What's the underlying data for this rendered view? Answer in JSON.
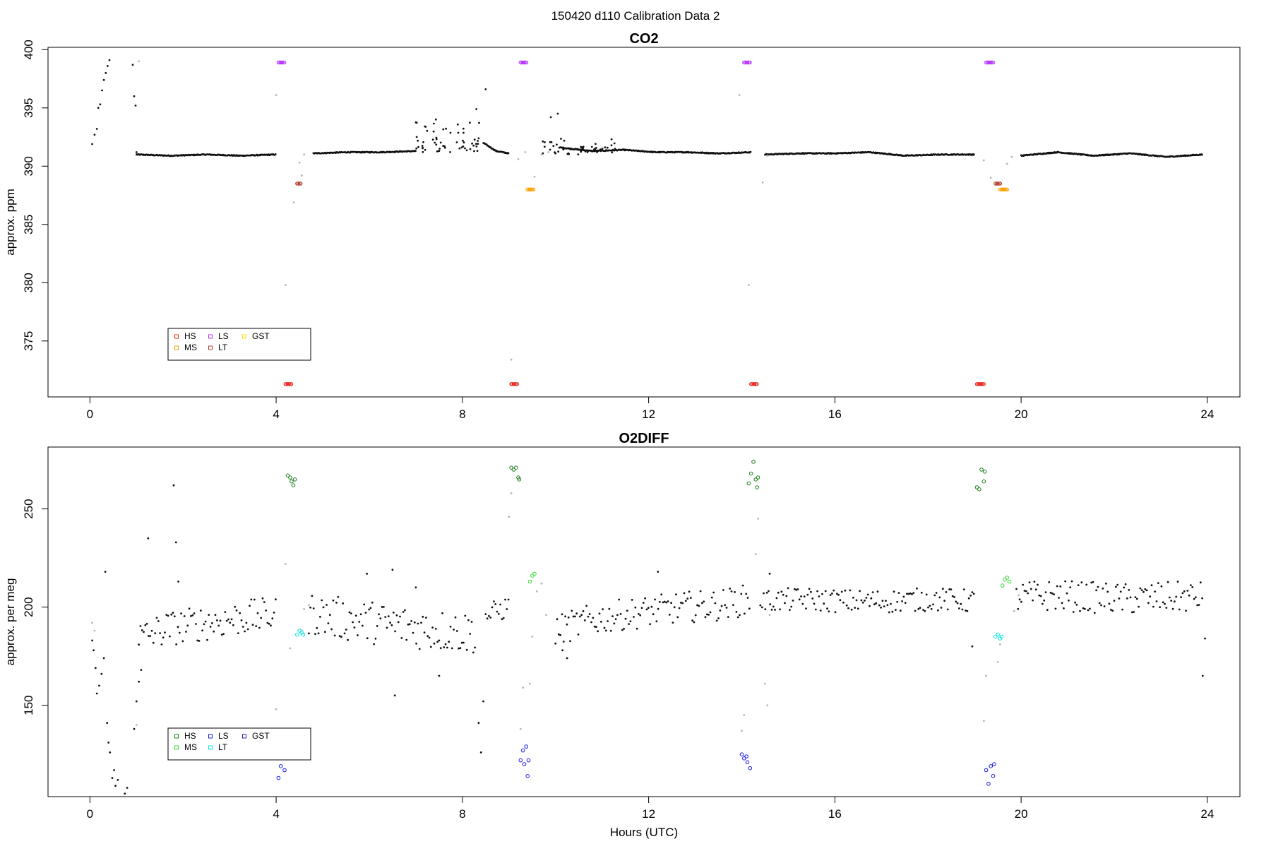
{
  "figure": {
    "title": "150420   d110   Calibration Data 2"
  },
  "chart_data": [
    {
      "type": "scatter",
      "title": "CO2",
      "xlabel": "",
      "ylabel": "approx. ppm",
      "xlim": [
        -0.9,
        24.7
      ],
      "ylim": [
        370.2,
        400.2
      ],
      "xticks": [
        0,
        4,
        8,
        12,
        16,
        20,
        24
      ],
      "yticks": [
        375,
        380,
        385,
        390,
        395,
        400
      ],
      "legend": {
        "placement": "bottom-left",
        "entries": [
          {
            "label": "HS",
            "color": "#e8261d"
          },
          {
            "label": "MS",
            "color": "#ff9f00"
          },
          {
            "label": "LS",
            "color": "#b432ff"
          },
          {
            "label": "LT",
            "color": "#b13b2a"
          },
          {
            "label": "GST",
            "color": "#ffe200"
          }
        ]
      },
      "ambient_segments": [
        {
          "x0": 1.0,
          "x1": 4.0,
          "y": [
            391.0,
            390.9,
            391.0,
            390.9,
            391.0
          ]
        },
        {
          "x0": 4.8,
          "x1": 7.0,
          "y": [
            391.1,
            391.2,
            391.2,
            391.3
          ]
        },
        {
          "x0": 8.45,
          "x1": 9.0,
          "y": [
            392.0,
            391.3,
            391.1
          ]
        },
        {
          "x0": 10.1,
          "x1": 14.2,
          "y": [
            391.6,
            391.3,
            391.4,
            391.2,
            391.2,
            391.1,
            391.2
          ]
        },
        {
          "x0": 14.5,
          "x1": 19.0,
          "y": [
            391.0,
            391.1,
            391.1,
            391.2,
            390.9,
            391.0,
            391.0
          ]
        },
        {
          "x0": 20.0,
          "x1": 23.9,
          "y": [
            390.9,
            391.2,
            390.9,
            391.1,
            390.8,
            391.0
          ]
        }
      ],
      "scatter_regions": [
        {
          "x0": 7.0,
          "x1": 8.4,
          "ylo": 391.2,
          "yhi": 394.3,
          "n": 60
        },
        {
          "x0": 9.7,
          "x1": 11.3,
          "ylo": 391.0,
          "yhi": 392.6,
          "n": 45
        }
      ],
      "scatter_points": [
        [
          0.05,
          391.9
        ],
        [
          0.1,
          392.7
        ],
        [
          0.15,
          393.2
        ],
        [
          0.18,
          395.0
        ],
        [
          0.22,
          395.3
        ],
        [
          0.26,
          396.5
        ],
        [
          0.3,
          397.4
        ],
        [
          0.34,
          398.0
        ],
        [
          0.38,
          398.6
        ],
        [
          0.42,
          399.1
        ],
        [
          0.92,
          398.7
        ],
        [
          0.95,
          396.0
        ],
        [
          0.98,
          395.2
        ],
        [
          1.0,
          391.2
        ],
        [
          8.5,
          396.6
        ],
        [
          9.9,
          394.2
        ],
        [
          10.05,
          394.5
        ],
        [
          8.3,
          394.9
        ]
      ],
      "transition_points": [
        [
          1.05,
          399.0
        ],
        [
          4.0,
          396.1
        ],
        [
          4.2,
          379.8
        ],
        [
          4.38,
          386.9
        ],
        [
          4.5,
          390.3
        ],
        [
          4.55,
          389.2
        ],
        [
          4.6,
          391.0
        ],
        [
          9.05,
          373.4
        ],
        [
          9.2,
          390.6
        ],
        [
          9.35,
          391.2
        ],
        [
          9.55,
          389.1
        ],
        [
          9.7,
          391.0
        ],
        [
          9.85,
          391.2
        ],
        [
          13.95,
          396.1
        ],
        [
          14.15,
          379.8
        ],
        [
          14.45,
          388.6
        ],
        [
          14.55,
          390.9
        ],
        [
          19.2,
          390.5
        ],
        [
          19.35,
          389.0
        ],
        [
          19.7,
          390.2
        ],
        [
          19.8,
          390.8
        ]
      ],
      "calibrations": [
        {
          "tank": "LS",
          "color": "#b432ff",
          "x0": 4.05,
          "x1": 4.2,
          "y": 398.9
        },
        {
          "tank": "HS",
          "color": "#e8261d",
          "x0": 4.2,
          "x1": 4.35,
          "y": 371.3
        },
        {
          "tank": "LT",
          "color": "#b13b2a",
          "x0": 4.45,
          "x1": 4.55,
          "y": 388.5
        },
        {
          "tank": "HS",
          "color": "#e8261d",
          "x0": 9.05,
          "x1": 9.2,
          "y": 371.3
        },
        {
          "tank": "LS",
          "color": "#b432ff",
          "x0": 9.25,
          "x1": 9.4,
          "y": 398.9
        },
        {
          "tank": "MS",
          "color": "#ff9f00",
          "x0": 9.4,
          "x1": 9.55,
          "y": 388.0
        },
        {
          "tank": "LS",
          "color": "#b432ff",
          "x0": 14.05,
          "x1": 14.2,
          "y": 398.9
        },
        {
          "tank": "HS",
          "color": "#e8261d",
          "x0": 14.2,
          "x1": 14.35,
          "y": 371.3
        },
        {
          "tank": "HS",
          "color": "#e8261d",
          "x0": 19.05,
          "x1": 19.2,
          "y": 371.3
        },
        {
          "tank": "LS",
          "color": "#b432ff",
          "x0": 19.25,
          "x1": 19.4,
          "y": 398.9
        },
        {
          "tank": "LT",
          "color": "#b13b2a",
          "x0": 19.45,
          "x1": 19.55,
          "y": 388.5
        },
        {
          "tank": "MS",
          "color": "#ff9f00",
          "x0": 19.55,
          "x1": 19.7,
          "y": 388.0
        }
      ]
    },
    {
      "type": "scatter",
      "title": "O2DIFF",
      "xlabel": "Hours (UTC)",
      "ylabel": "approx. per meg",
      "xlim": [
        -0.9,
        24.7
      ],
      "ylim": [
        103.5,
        281.5
      ],
      "xticks": [
        0,
        4,
        8,
        12,
        16,
        20,
        24
      ],
      "yticks": [
        150,
        200,
        250
      ],
      "legend": {
        "placement": "bottom-left",
        "entries": [
          {
            "label": "HS",
            "color": "#1a7d1a"
          },
          {
            "label": "MS",
            "color": "#33dd33"
          },
          {
            "label": "LS",
            "color": "#1515ee"
          },
          {
            "label": "LT",
            "color": "#00e6e6"
          },
          {
            "label": "GST",
            "color": "#2222aa"
          }
        ]
      },
      "ambient_segments": [
        {
          "x0": 1.05,
          "x1": 4.0,
          "y": [
            184,
            189,
            191,
            193,
            195,
            196
          ],
          "spread": 9
        },
        {
          "x0": 4.7,
          "x1": 8.3,
          "y": [
            197,
            194,
            192,
            190,
            188,
            187
          ],
          "spread": 11
        },
        {
          "x0": 8.5,
          "x1": 9.0,
          "y": [
            195,
            198,
            200
          ],
          "spread": 6
        },
        {
          "x0": 10.0,
          "x1": 14.2,
          "y": [
            188,
            193,
            196,
            198,
            200,
            201,
            204
          ],
          "spread": 8
        },
        {
          "x0": 14.4,
          "x1": 19.0,
          "y": [
            203,
            204,
            203,
            203,
            204,
            203
          ],
          "spread": 6
        },
        {
          "x0": 19.9,
          "x1": 23.9,
          "y": [
            205,
            206,
            205,
            204,
            205,
            205
          ],
          "spread": 8
        }
      ],
      "scatter_points": [
        [
          0.05,
          183
        ],
        [
          0.08,
          178
        ],
        [
          0.12,
          169
        ],
        [
          0.15,
          156
        ],
        [
          0.2,
          160
        ],
        [
          0.25,
          166
        ],
        [
          0.3,
          174
        ],
        [
          0.33,
          218
        ],
        [
          0.37,
          141
        ],
        [
          0.4,
          131
        ],
        [
          0.43,
          126
        ],
        [
          0.48,
          113
        ],
        [
          0.52,
          117
        ],
        [
          0.55,
          109
        ],
        [
          0.6,
          112
        ],
        [
          0.75,
          105
        ],
        [
          0.8,
          108
        ],
        [
          0.95,
          138
        ],
        [
          1.0,
          152
        ],
        [
          1.05,
          162
        ],
        [
          1.1,
          168
        ],
        [
          1.25,
          235
        ],
        [
          1.8,
          262
        ],
        [
          1.85,
          233
        ],
        [
          1.9,
          213
        ],
        [
          5.95,
          217
        ],
        [
          6.5,
          219
        ],
        [
          6.55,
          155
        ],
        [
          7.0,
          210
        ],
        [
          7.5,
          165
        ],
        [
          8.35,
          141
        ],
        [
          8.4,
          126
        ],
        [
          8.45,
          152
        ],
        [
          10.15,
          178
        ],
        [
          10.25,
          174
        ],
        [
          12.2,
          218
        ],
        [
          14.6,
          217
        ],
        [
          18.95,
          180
        ],
        [
          23.9,
          165
        ],
        [
          23.95,
          184
        ]
      ],
      "transition_points": [
        [
          0.05,
          192
        ],
        [
          0.1,
          188
        ],
        [
          1.0,
          140
        ],
        [
          4.0,
          148
        ],
        [
          4.2,
          222
        ],
        [
          4.3,
          179
        ],
        [
          4.55,
          188
        ],
        [
          4.6,
          199
        ],
        [
          4.7,
          201
        ],
        [
          9.0,
          246
        ],
        [
          9.05,
          258
        ],
        [
          9.25,
          138
        ],
        [
          9.3,
          159
        ],
        [
          9.45,
          161
        ],
        [
          9.5,
          185
        ],
        [
          9.6,
          208
        ],
        [
          9.7,
          212
        ],
        [
          9.8,
          196
        ],
        [
          14.0,
          137
        ],
        [
          14.05,
          145
        ],
        [
          14.3,
          227
        ],
        [
          14.35,
          245
        ],
        [
          14.5,
          161
        ],
        [
          14.55,
          150
        ],
        [
          14.6,
          196
        ],
        [
          19.2,
          142
        ],
        [
          19.25,
          165
        ],
        [
          19.5,
          172
        ],
        [
          19.55,
          181
        ],
        [
          19.85,
          198
        ],
        [
          19.95,
          206
        ]
      ],
      "calibrations": [
        {
          "tank": "LS",
          "color": "#1515ee",
          "pts": [
            [
              4.05,
              113
            ],
            [
              4.1,
              119
            ],
            [
              4.18,
              117
            ]
          ]
        },
        {
          "tank": "HS",
          "color": "#1a7d1a",
          "pts": [
            [
              4.25,
              267
            ],
            [
              4.3,
              266
            ],
            [
              4.33,
              264
            ],
            [
              4.37,
              262
            ],
            [
              4.4,
              265
            ]
          ]
        },
        {
          "tank": "LT",
          "color": "#00e6e6",
          "pts": [
            [
              4.45,
              186
            ],
            [
              4.5,
              188
            ],
            [
              4.55,
              187
            ],
            [
              4.58,
              186
            ]
          ]
        },
        {
          "tank": "HS",
          "color": "#1a7d1a",
          "pts": [
            [
              9.05,
              271
            ],
            [
              9.1,
              270
            ],
            [
              9.15,
              271
            ],
            [
              9.2,
              266
            ],
            [
              9.22,
              265
            ]
          ]
        },
        {
          "tank": "LS",
          "color": "#1515ee",
          "pts": [
            [
              9.25,
              122
            ],
            [
              9.3,
              127
            ],
            [
              9.33,
              120
            ],
            [
              9.37,
              129
            ],
            [
              9.4,
              114
            ],
            [
              9.42,
              122
            ]
          ]
        },
        {
          "tank": "MS",
          "color": "#33dd33",
          "pts": [
            [
              9.45,
              213
            ],
            [
              9.5,
              216
            ],
            [
              9.55,
              217
            ]
          ]
        },
        {
          "tank": "HS",
          "color": "#1a7d1a",
          "pts": [
            [
              14.15,
              263
            ],
            [
              14.2,
              268
            ],
            [
              14.25,
              274
            ],
            [
              14.3,
              265
            ],
            [
              14.33,
              261
            ],
            [
              14.35,
              266
            ]
          ]
        },
        {
          "tank": "LS",
          "color": "#1515ee",
          "pts": [
            [
              14.0,
              125
            ],
            [
              14.05,
              123
            ],
            [
              14.1,
              124
            ],
            [
              14.12,
              121
            ],
            [
              14.18,
              118
            ]
          ]
        },
        {
          "tank": "HS",
          "color": "#1a7d1a",
          "pts": [
            [
              19.05,
              261
            ],
            [
              19.1,
              260
            ],
            [
              19.15,
              270
            ],
            [
              19.2,
              264
            ],
            [
              19.22,
              269
            ]
          ]
        },
        {
          "tank": "LS",
          "color": "#1515ee",
          "pts": [
            [
              19.25,
              117
            ],
            [
              19.3,
              110
            ],
            [
              19.35,
              119
            ],
            [
              19.4,
              114
            ],
            [
              19.42,
              120
            ]
          ]
        },
        {
          "tank": "LT",
          "color": "#00e6e6",
          "pts": [
            [
              19.45,
              185
            ],
            [
              19.5,
              186
            ],
            [
              19.55,
              184
            ],
            [
              19.58,
              185
            ]
          ]
        },
        {
          "tank": "MS",
          "color": "#33dd33",
          "pts": [
            [
              19.6,
              211
            ],
            [
              19.65,
              214
            ],
            [
              19.7,
              215
            ],
            [
              19.75,
              213
            ]
          ]
        }
      ]
    }
  ]
}
